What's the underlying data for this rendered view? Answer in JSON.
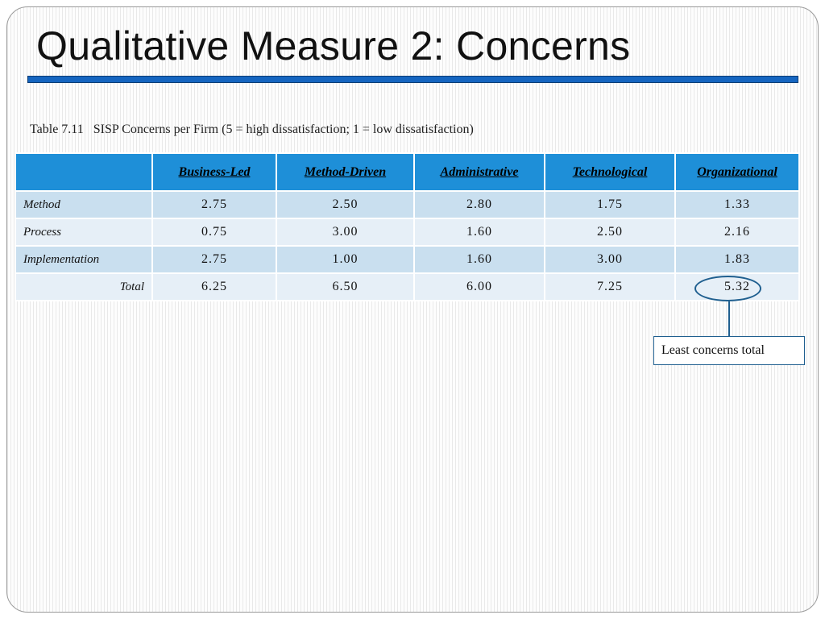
{
  "slide": {
    "title": "Qualitative Measure 2: Concerns",
    "accent_color": "#1565c0"
  },
  "table": {
    "caption": "Table 7.11   SISP Concerns per Firm (5 = high dissatisfaction; 1 = low dissatisfaction)",
    "header_color": "#1e8fd8",
    "columns": [
      "",
      "Business-Led",
      "Method-Driven",
      "Administrative",
      "Technological",
      "Organizational"
    ],
    "rows": [
      {
        "label": "Method",
        "values": [
          "2.75",
          "2.50",
          "2.80",
          "1.75",
          "1.33"
        ]
      },
      {
        "label": "Process",
        "values": [
          "0.75",
          "3.00",
          "1.60",
          "2.50",
          "2.16"
        ]
      },
      {
        "label": "Implementation",
        "values": [
          "2.75",
          "1.00",
          "1.60",
          "3.00",
          "1.83"
        ]
      },
      {
        "label": "Total",
        "values": [
          "6.25",
          "6.50",
          "6.00",
          "7.25",
          "5.32"
        ]
      }
    ]
  },
  "callout": {
    "text": "Least concerns total"
  }
}
